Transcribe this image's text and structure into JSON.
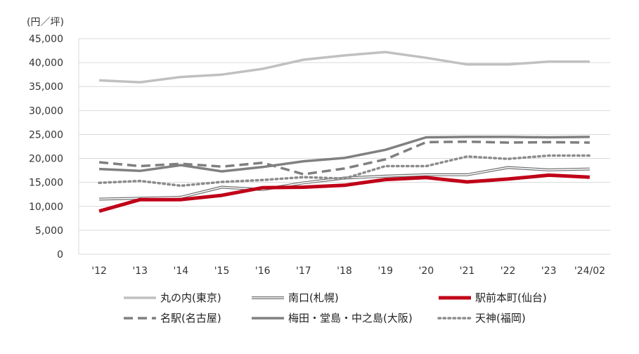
{
  "chart_data": {
    "type": "line",
    "unit_label": "(円／坪)",
    "categories": [
      "'12",
      "'13",
      "'14",
      "'15",
      "'16",
      "'17",
      "'18",
      "'19",
      "'20",
      "'21",
      "'22",
      "'23",
      "'24/02"
    ],
    "yticks": [
      "0",
      "5,000",
      "10,000",
      "15,000",
      "20,000",
      "25,000",
      "30,000",
      "35,000",
      "40,000",
      "45,000"
    ],
    "ylim": [
      0,
      45000
    ],
    "grid": true,
    "legend_position": "bottom",
    "series": [
      {
        "name": "丸の内(東京)",
        "color": "#c0c0c0",
        "style": "solid",
        "values": [
          36300,
          35900,
          37000,
          37500,
          38700,
          40600,
          41500,
          42200,
          41000,
          39600,
          39600,
          40200,
          40200
        ]
      },
      {
        "name": "南口(札幌)",
        "color": "#707070",
        "style": "double",
        "values": [
          11500,
          11700,
          11900,
          14000,
          13500,
          14900,
          15900,
          16300,
          16600,
          16600,
          18100,
          17600,
          17800
        ]
      },
      {
        "name": "駅前本町(仙台)",
        "color": "#c00018",
        "style": "thick",
        "values": [
          9000,
          11400,
          11400,
          12300,
          13900,
          14000,
          14400,
          15600,
          16000,
          15100,
          15700,
          16500,
          16100
        ]
      },
      {
        "name": "名駅(名古屋)",
        "color": "#7f7f7f",
        "style": "dashed",
        "values": [
          19200,
          18400,
          18900,
          18300,
          19100,
          16700,
          17900,
          19800,
          23400,
          23500,
          23300,
          23400,
          23300
        ]
      },
      {
        "name": "梅田・堂島・中之島(大阪)",
        "color": "#808080",
        "style": "solid",
        "values": [
          17800,
          17400,
          18600,
          17300,
          18200,
          19400,
          20100,
          21800,
          24400,
          24500,
          24500,
          24400,
          24500
        ]
      },
      {
        "name": "天神(福岡)",
        "color": "#8c8c8c",
        "style": "dotted",
        "values": [
          14900,
          15300,
          14300,
          15100,
          15500,
          16100,
          15800,
          18400,
          18400,
          20400,
          19900,
          20600,
          20600
        ]
      }
    ]
  }
}
